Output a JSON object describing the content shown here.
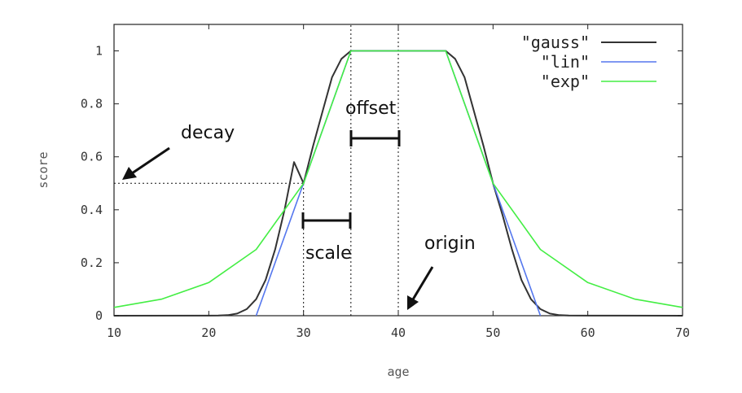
{
  "chart_data": {
    "type": "line",
    "xlabel": "age",
    "ylabel": "score",
    "xlim": [
      10,
      70
    ],
    "ylim": [
      0,
      1.1
    ],
    "x_ticks": [
      "10",
      "20",
      "30",
      "40",
      "50",
      "60",
      "70"
    ],
    "y_ticks": [
      "0",
      "0.2",
      "0.4",
      "0.6",
      "0.8",
      "1"
    ],
    "grid": false,
    "legend_position": "top-right",
    "series": [
      {
        "name": "\"gauss\"",
        "color": "#333333",
        "points": [
          [
            10,
            0
          ],
          [
            20,
            0.0002
          ],
          [
            21,
            0.0006
          ],
          [
            22,
            0.0022
          ],
          [
            23,
            0.008
          ],
          [
            24,
            0.025
          ],
          [
            25,
            0.0625
          ],
          [
            26,
            0.135
          ],
          [
            27,
            0.25
          ],
          [
            28,
            0.4
          ],
          [
            29,
            0.58
          ],
          [
            30,
            0.5
          ],
          [
            31,
            0.64
          ],
          [
            32,
            0.77
          ],
          [
            33,
            0.9
          ],
          [
            34,
            0.97
          ],
          [
            35,
            1
          ],
          [
            45,
            1
          ],
          [
            46,
            0.97
          ],
          [
            47,
            0.9
          ],
          [
            48,
            0.77
          ],
          [
            49,
            0.64
          ],
          [
            50,
            0.5
          ],
          [
            51,
            0.38
          ],
          [
            52,
            0.25
          ],
          [
            53,
            0.135
          ],
          [
            54,
            0.0625
          ],
          [
            55,
            0.025
          ],
          [
            56,
            0.008
          ],
          [
            57,
            0.0022
          ],
          [
            58,
            0.0006
          ],
          [
            60,
            0.0002
          ],
          [
            70,
            0
          ]
        ]
      },
      {
        "name": "\"lin\"",
        "color": "#5577ee",
        "points": [
          [
            25,
            0
          ],
          [
            35,
            1
          ],
          [
            45,
            1
          ],
          [
            55,
            0
          ]
        ]
      },
      {
        "name": "\"exp\"",
        "color": "#44ee44",
        "points": [
          [
            10,
            0.03125
          ],
          [
            15,
            0.0625
          ],
          [
            20,
            0.125
          ],
          [
            25,
            0.25
          ],
          [
            30,
            0.5
          ],
          [
            35,
            1
          ],
          [
            45,
            1
          ],
          [
            50,
            0.5
          ],
          [
            55,
            0.25
          ],
          [
            60,
            0.125
          ],
          [
            65,
            0.0625
          ],
          [
            70,
            0.03125
          ]
        ]
      }
    ],
    "reference_lines": [
      {
        "type": "vertical",
        "x": 30,
        "from_y": 0,
        "to_y": 0.5
      },
      {
        "type": "vertical",
        "x": 35,
        "from_y": 0,
        "to_y": 1.1
      },
      {
        "type": "vertical",
        "x": 40,
        "from_y": 0,
        "to_y": 1.1
      },
      {
        "type": "horizontal",
        "y": 0.5,
        "from_x": 10,
        "to_x": 30
      }
    ],
    "annotations": [
      {
        "text": "decay"
      },
      {
        "text": "offset"
      },
      {
        "text": "scale"
      },
      {
        "text": "origin"
      }
    ]
  }
}
